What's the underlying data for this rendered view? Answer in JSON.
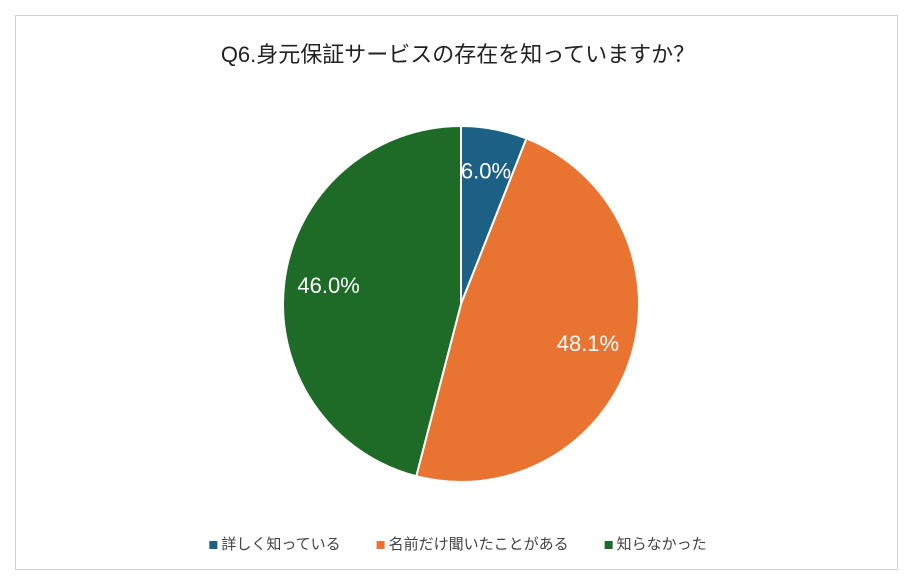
{
  "chart_data": {
    "type": "pie",
    "title": "Q6.身元保証サービスの存在を知っていますか？",
    "categories": [
      "詳しく知っている",
      "名前だけ聞いたことがある",
      "知らなかった"
    ],
    "values": [
      6.0,
      48.1,
      46.0
    ],
    "value_labels": [
      "6.0%",
      "48.1%",
      "46.0%"
    ],
    "colors": [
      "#1c6185",
      "#e97431",
      "#1d6b27"
    ],
    "legend": "bottom"
  }
}
